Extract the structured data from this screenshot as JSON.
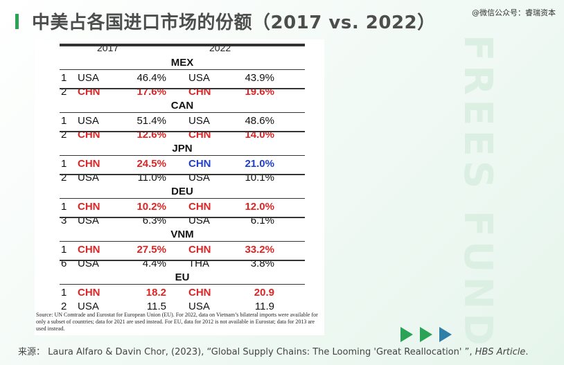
{
  "title": "中美占各国进口市场的份额（2017 vs. 2022）",
  "watermark_top": "@微信公众号：睿瑞资本",
  "watermark_side": "FREES FUND",
  "table": {
    "year_left": "2017",
    "year_right": "2022",
    "countries": [
      {
        "name": "MEX",
        "rows": [
          {
            "rank": "1",
            "c1": "USA",
            "v1": "46.4%",
            "c2": "USA",
            "v2": "43.9%"
          },
          {
            "rank": "2",
            "c1": "CHN",
            "v1": "17.6%",
            "c2": "CHN",
            "v2": "19.6%"
          }
        ]
      },
      {
        "name": "CAN",
        "rows": [
          {
            "rank": "1",
            "c1": "USA",
            "v1": "51.4%",
            "c2": "USA",
            "v2": "48.6%"
          },
          {
            "rank": "2",
            "c1": "CHN",
            "v1": "12.6%",
            "c2": "CHN",
            "v2": "14.0%"
          }
        ]
      },
      {
        "name": "JPN",
        "rows": [
          {
            "rank": "1",
            "c1": "CHN",
            "v1": "24.5%",
            "c2": "CHN",
            "v2": "21.0%"
          },
          {
            "rank": "2",
            "c1": "USA",
            "v1": "11.0%",
            "c2": "USA",
            "v2": "10.1%"
          }
        ]
      },
      {
        "name": "DEU",
        "rows": [
          {
            "rank": "1",
            "c1": "CHN",
            "v1": "10.2%",
            "c2": "CHN",
            "v2": "12.0%"
          },
          {
            "rank": "3",
            "c1": "USA",
            "v1": "6.3%",
            "c2": "USA",
            "v2": "6.1%"
          }
        ]
      },
      {
        "name": "VNM",
        "rows": [
          {
            "rank": "1",
            "c1": "CHN",
            "v1": "27.5%",
            "c2": "CHN",
            "v2": "33.2%"
          },
          {
            "rank": "6",
            "c1": "USA",
            "v1": "4.4%",
            "c2": "THA",
            "v2": "3.8%"
          }
        ]
      },
      {
        "name": "EU",
        "rows": [
          {
            "rank": "1",
            "c1": "CHN",
            "v1": "18.2",
            "c2": "CHN",
            "v2": "20.9"
          },
          {
            "rank": "2",
            "c1": "USA",
            "v1": "11.5",
            "c2": "USA",
            "v2": "11.9"
          }
        ]
      }
    ],
    "source_note": "Source: UN Comtrade and Eurostat for European Union (EU). For 2022, data on Vietnam’s bilateral imports were available for only a subset of countries; data for 2021 are used instead. For EU, data for 2012 is not available in Eurostat; data for 2013 are used instead."
  },
  "footer": {
    "prefix": "来源：  Laura Alfaro & Davin Chor, (2023), “Global Supply Chains: The Looming 'Great Reallocation' ”, ",
    "italic": "HBS Article",
    "suffix": "."
  },
  "colors": {
    "accent": "#2aa356",
    "chn_red": "#e02424",
    "chn_blue": "#1f3fcf",
    "arrow_green": "#2aa356",
    "arrow_blue": "#2f7fa6"
  },
  "icons": [
    "play-arrow-icon",
    "play-arrow-icon",
    "play-arrow-icon"
  ]
}
